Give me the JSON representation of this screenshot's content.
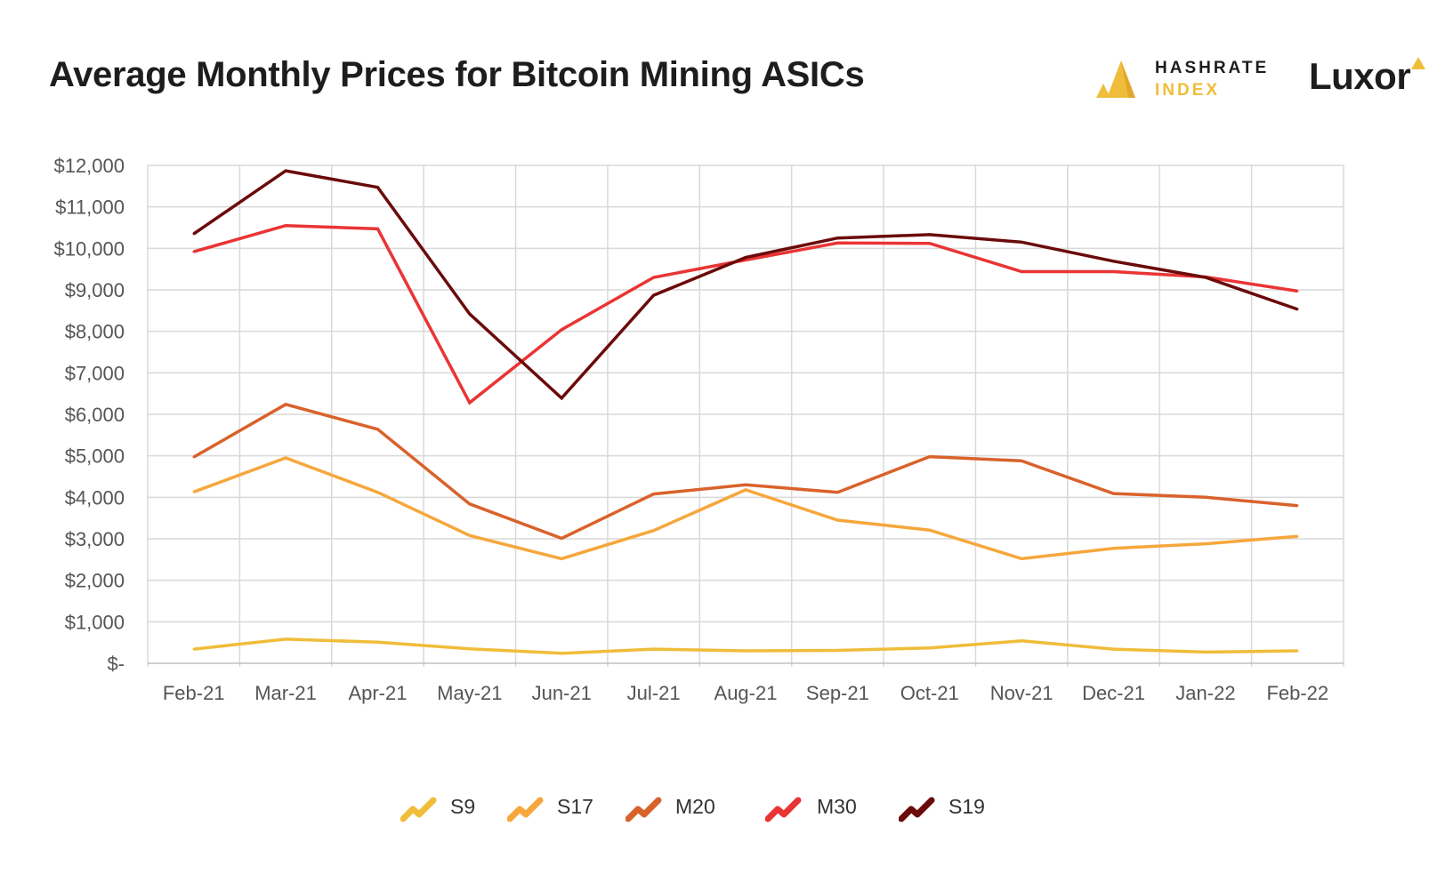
{
  "header": {
    "title": "Average Monthly Prices for Bitcoin Mining ASICs"
  },
  "brand": {
    "hashrate_line1": "HASHRATE",
    "hashrate_line2": "INDEX",
    "hashrate_icon": "hashrate-index-logo-icon",
    "luxor_name": "Luxor",
    "luxor_icon": "luxor-triangle-icon",
    "colors": {
      "hashrate_gold": "#f0bd3a",
      "text_dark": "#1d1d1b"
    }
  },
  "chart_data": {
    "type": "line",
    "title": "Average Monthly Prices for Bitcoin Mining ASICs",
    "xlabel": "",
    "ylabel": "",
    "categories": [
      "Feb-21",
      "Mar-21",
      "Apr-21",
      "May-21",
      "Jun-21",
      "Jul-21",
      "Aug-21",
      "Sep-21",
      "Oct-21",
      "Nov-21",
      "Dec-21",
      "Jan-22",
      "Feb-22"
    ],
    "y_ticks": [
      0,
      1000,
      2000,
      3000,
      4000,
      5000,
      6000,
      7000,
      8000,
      9000,
      10000,
      11000,
      12000
    ],
    "y_tick_labels": [
      "$-",
      "$1,000",
      "$2,000",
      "$3,000",
      "$4,000",
      "$5,000",
      "$6,000",
      "$7,000",
      "$8,000",
      "$9,000",
      "$10,000",
      "$11,000",
      "$12,000"
    ],
    "ylim": [
      0,
      12000
    ],
    "grid": true,
    "legend_position": "bottom-center",
    "series": [
      {
        "name": "S9",
        "color": "#f0bd3a",
        "values": [
          340,
          580,
          510,
          350,
          240,
          340,
          300,
          310,
          370,
          540,
          340,
          270,
          300
        ]
      },
      {
        "name": "S17",
        "color": "#f6a73c",
        "values": [
          4130,
          4950,
          4120,
          3080,
          2520,
          3200,
          4180,
          3450,
          3210,
          2520,
          2770,
          2880,
          3060
        ]
      },
      {
        "name": "M20",
        "color": "#d9622b",
        "values": [
          4970,
          6240,
          5640,
          3840,
          3010,
          4080,
          4300,
          4120,
          4980,
          4880,
          4090,
          4000,
          3800
        ]
      },
      {
        "name": "M30",
        "color": "#ea3434",
        "values": [
          9920,
          10550,
          10470,
          6280,
          8040,
          9300,
          9720,
          10130,
          10120,
          9440,
          9440,
          9310,
          8970
        ]
      },
      {
        "name": "S19",
        "color": "#6b0a0a",
        "values": [
          10350,
          11870,
          11470,
          8420,
          6390,
          8870,
          9780,
          10250,
          10330,
          10150,
          9690,
          9300,
          8530
        ]
      }
    ]
  }
}
